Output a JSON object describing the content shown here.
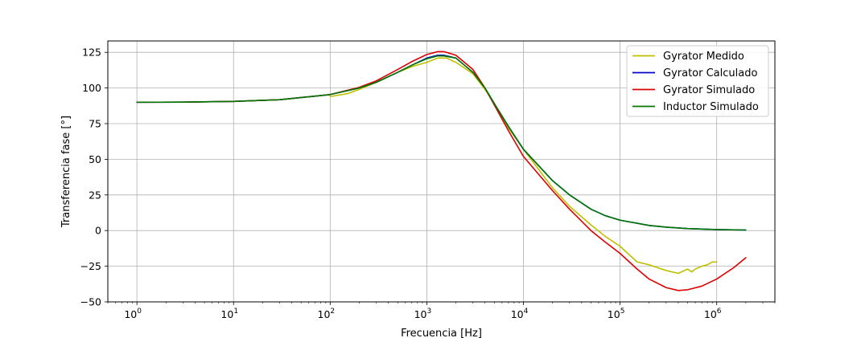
{
  "chart_data": {
    "type": "line",
    "xscale": "log",
    "xlabel": "Frecuencia [Hz]",
    "ylabel": "Transferencia fase [°]",
    "xlim": [
      0.5,
      4000000
    ],
    "ylim": [
      -50,
      133
    ],
    "grid": true,
    "legend_position": "top-right",
    "x_ticks": [
      {
        "value": 1,
        "base": "10",
        "exp": "0"
      },
      {
        "value": 10,
        "base": "10",
        "exp": "1"
      },
      {
        "value": 100,
        "base": "10",
        "exp": "2"
      },
      {
        "value": 1000,
        "base": "10",
        "exp": "3"
      },
      {
        "value": 10000,
        "base": "10",
        "exp": "4"
      },
      {
        "value": 100000,
        "base": "10",
        "exp": "5"
      },
      {
        "value": 1000000,
        "base": "10",
        "exp": "6"
      }
    ],
    "y_ticks": [
      {
        "value": -50,
        "label": "−50"
      },
      {
        "value": -25,
        "label": "−25"
      },
      {
        "value": 0,
        "label": "0"
      },
      {
        "value": 25,
        "label": "25"
      },
      {
        "value": 50,
        "label": "50"
      },
      {
        "value": 75,
        "label": "75"
      },
      {
        "value": 100,
        "label": "100"
      },
      {
        "value": 125,
        "label": "125"
      }
    ],
    "series": [
      {
        "name": "Gyrator Medido",
        "color": "#bfbf00",
        "x": [
          100,
          150,
          200,
          300,
          500,
          700,
          1000,
          1300,
          1600,
          2000,
          3000,
          4000,
          5000,
          7000,
          10000,
          20000,
          30000,
          50000,
          70000,
          100000,
          150000,
          200000,
          300000,
          400000,
          500000,
          550000,
          600000,
          700000,
          800000,
          900000,
          1000000
        ],
        "y": [
          94,
          96,
          99,
          104,
          111,
          115,
          118,
          121,
          121,
          118,
          110,
          99,
          89,
          72,
          57,
          30,
          17,
          4,
          -4,
          -11,
          -22,
          -24,
          -28,
          -30,
          -27,
          -29,
          -27,
          -25,
          -24,
          -22,
          -22
        ]
      },
      {
        "name": "Gyrator Calculado",
        "color": "#0000cc",
        "x": [
          1,
          3,
          10,
          30,
          100,
          200,
          300,
          500,
          700,
          1000,
          1300,
          1500,
          2000,
          3000,
          4000,
          5000,
          7000,
          10000,
          20000,
          30000,
          50000,
          70000,
          100000,
          200000,
          300000,
          500000,
          1000000,
          2000000
        ],
        "y": [
          90,
          90.1,
          90.6,
          91.8,
          95.4,
          100,
          104,
          111,
          116,
          121,
          123,
          123,
          121,
          111,
          100,
          89,
          73,
          57,
          35,
          25,
          15,
          10.5,
          7.3,
          3.6,
          2.4,
          1.4,
          0.7,
          0.4
        ]
      },
      {
        "name": "Gyrator Simulado",
        "color": "#dd0000",
        "x": [
          1,
          3,
          10,
          30,
          100,
          200,
          300,
          500,
          700,
          1000,
          1300,
          1500,
          2000,
          3000,
          4000,
          5000,
          7000,
          10000,
          20000,
          30000,
          50000,
          70000,
          100000,
          150000,
          200000,
          300000,
          400000,
          500000,
          700000,
          1000000,
          1500000,
          2000000
        ],
        "y": [
          90,
          90.1,
          90.6,
          91.8,
          95.4,
          100.5,
          105,
          113,
          118.5,
          123.5,
          125.5,
          125.5,
          123,
          113,
          100,
          88,
          70,
          52,
          28,
          15,
          0,
          -8,
          -16,
          -27,
          -34,
          -40,
          -42,
          -41.5,
          -39,
          -34,
          -26,
          -19
        ]
      },
      {
        "name": "Inductor Simulado",
        "color": "#007700",
        "x": [
          1,
          3,
          10,
          30,
          100,
          200,
          300,
          500,
          700,
          1000,
          1300,
          1500,
          2000,
          3000,
          4000,
          5000,
          7000,
          10000,
          20000,
          30000,
          50000,
          70000,
          100000,
          200000,
          300000,
          500000,
          1000000,
          2000000
        ],
        "y": [
          90,
          90.1,
          90.6,
          91.8,
          95.4,
          100,
          104,
          111,
          116,
          120.5,
          122.5,
          122.5,
          121,
          111,
          100,
          89,
          73,
          57,
          35,
          25,
          15,
          10.5,
          7.3,
          3.6,
          2.4,
          1.4,
          0.7,
          0.4
        ]
      }
    ]
  }
}
